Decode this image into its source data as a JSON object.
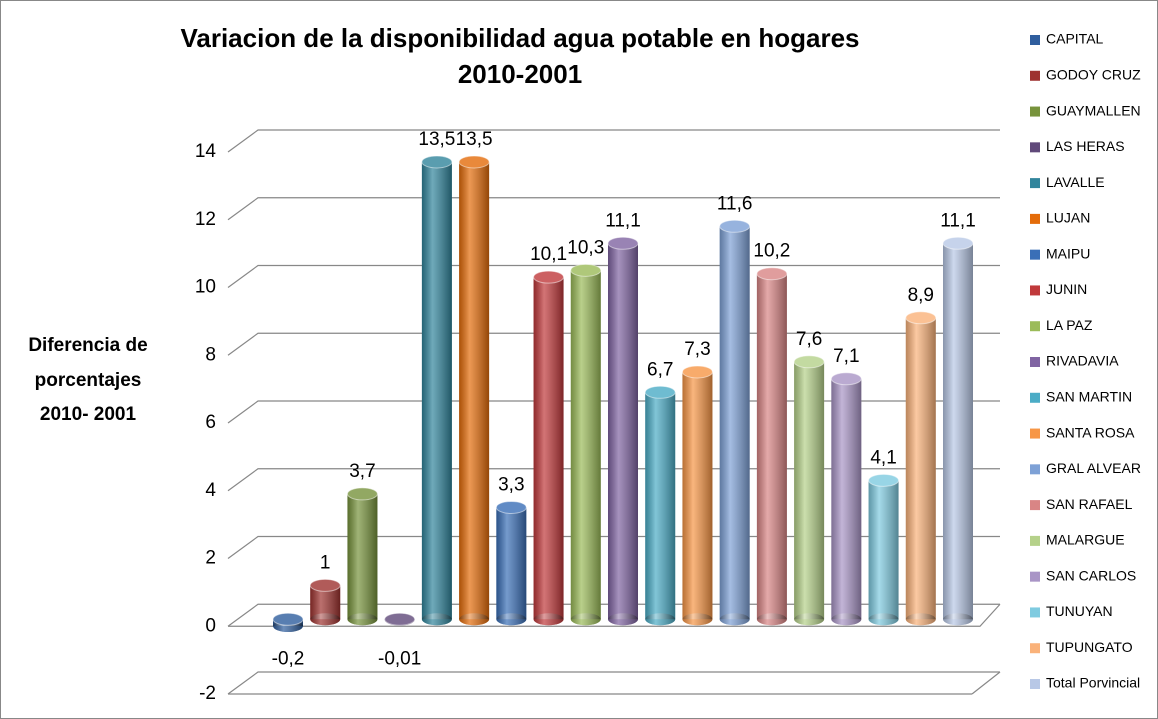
{
  "chart_data": {
    "type": "bar3d",
    "title": "Variacion de la disponibilidad agua potable en hogares",
    "subtitle": "2010-2001",
    "y_label": [
      "Diferencia de",
      "porcentajes",
      "2010- 2001"
    ],
    "categories": [
      "CAPITAL",
      "GODOY CRUZ",
      "GUAYMALLEN",
      "LAS HERAS",
      "LAVALLE",
      "LUJAN",
      "MAIPU",
      "JUNIN",
      "LA PAZ",
      "RIVADAVIA",
      "SAN MARTIN",
      "SANTA ROSA",
      "GRAL ALVEAR",
      "SAN RAFAEL",
      "MALARGUE",
      "SAN CARLOS",
      "TUNUYAN",
      "TUPUNGATO",
      "Total Porvincial"
    ],
    "values": [
      -0.2,
      1,
      3.7,
      -0.01,
      13.5,
      13.5,
      3.3,
      10.1,
      10.3,
      11.1,
      6.7,
      7.3,
      11.6,
      10.2,
      7.6,
      7.1,
      4.1,
      8.9,
      11.1
    ],
    "value_labels": [
      "-0,2",
      "1",
      "3,7",
      "-0,01",
      "13,5",
      "13,5",
      "3,3",
      "10,1",
      "10,3",
      "11,1",
      "6,7",
      "7,3",
      "11,6",
      "10,2",
      "7,6",
      "7,1",
      "4,1",
      "8,9",
      "11,1"
    ],
    "colors": [
      "#2f5e9e",
      "#9e3330",
      "#77933c",
      "#60497a",
      "#31859c",
      "#e46c0a",
      "#3a6fb7",
      "#c0393b",
      "#9bbb59",
      "#8064a2",
      "#4bacc6",
      "#f79646",
      "#7ea1d6",
      "#d98585",
      "#b5d18a",
      "#a995c6",
      "#7fcbe0",
      "#fab27a",
      "#b8c8e6"
    ],
    "ylim": [
      -2,
      14
    ],
    "yticks": [
      -2,
      0,
      2,
      4,
      6,
      8,
      10,
      12,
      14
    ],
    "grid": true
  }
}
